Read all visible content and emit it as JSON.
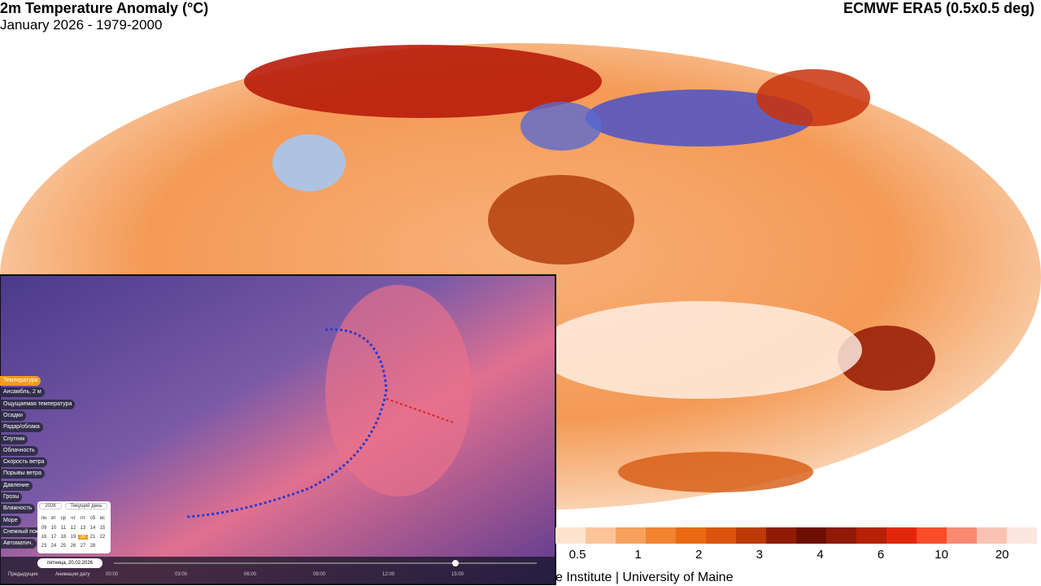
{
  "header": {
    "title": "2m Temperature Anomaly (°C)",
    "subtitle": "January 2026 - 1979-2000",
    "dataset": "ECMWF ERA5 (0.5x0.5 deg)"
  },
  "legend": {
    "ticks": [
      0.5,
      1,
      2,
      3,
      4,
      6,
      10,
      20
    ],
    "colors": [
      "#fde3cd",
      "#fbc49a",
      "#f8a15f",
      "#f28431",
      "#e96a12",
      "#d9540c",
      "#bb3a07",
      "#8e1c02",
      "#6e0f00",
      "#8f1a05",
      "#b52206",
      "#e2260c",
      "#f84c2a",
      "#f88a72",
      "#f9c3b3",
      "#fbe6e0"
    ]
  },
  "credit": "e Institute | University of Maine",
  "inset": {
    "menu": [
      "Температура",
      "Ансамбль, 2 м",
      "Ощущаемая температура",
      "Осадки",
      "Радар/облака",
      "Спутник",
      "Облачность",
      "Скорость ветра",
      "Порывы ветра",
      "Давление",
      "Грозы",
      "Влажность",
      "Море",
      "Снежный покров",
      "Автоматич."
    ],
    "calendar": {
      "year": "2026",
      "mode": "Текущий день",
      "weekdays": [
        "пн",
        "вт",
        "ср",
        "чт",
        "пт",
        "сб",
        "вс"
      ],
      "weeks": [
        [
          "09",
          "10",
          "11",
          "12",
          "13",
          "14",
          "15"
        ],
        [
          "16",
          "17",
          "18",
          "19",
          "20",
          "21",
          "22"
        ],
        [
          "23",
          "24",
          "25",
          "26",
          "27",
          "28"
        ]
      ]
    },
    "date": "пятница, 20.02.2026",
    "buttons": [
      "Предыдущие",
      "Анимация дату"
    ],
    "times": [
      "00:00",
      "03:00",
      "06:00",
      "09:00",
      "12:00",
      "15:00"
    ]
  }
}
